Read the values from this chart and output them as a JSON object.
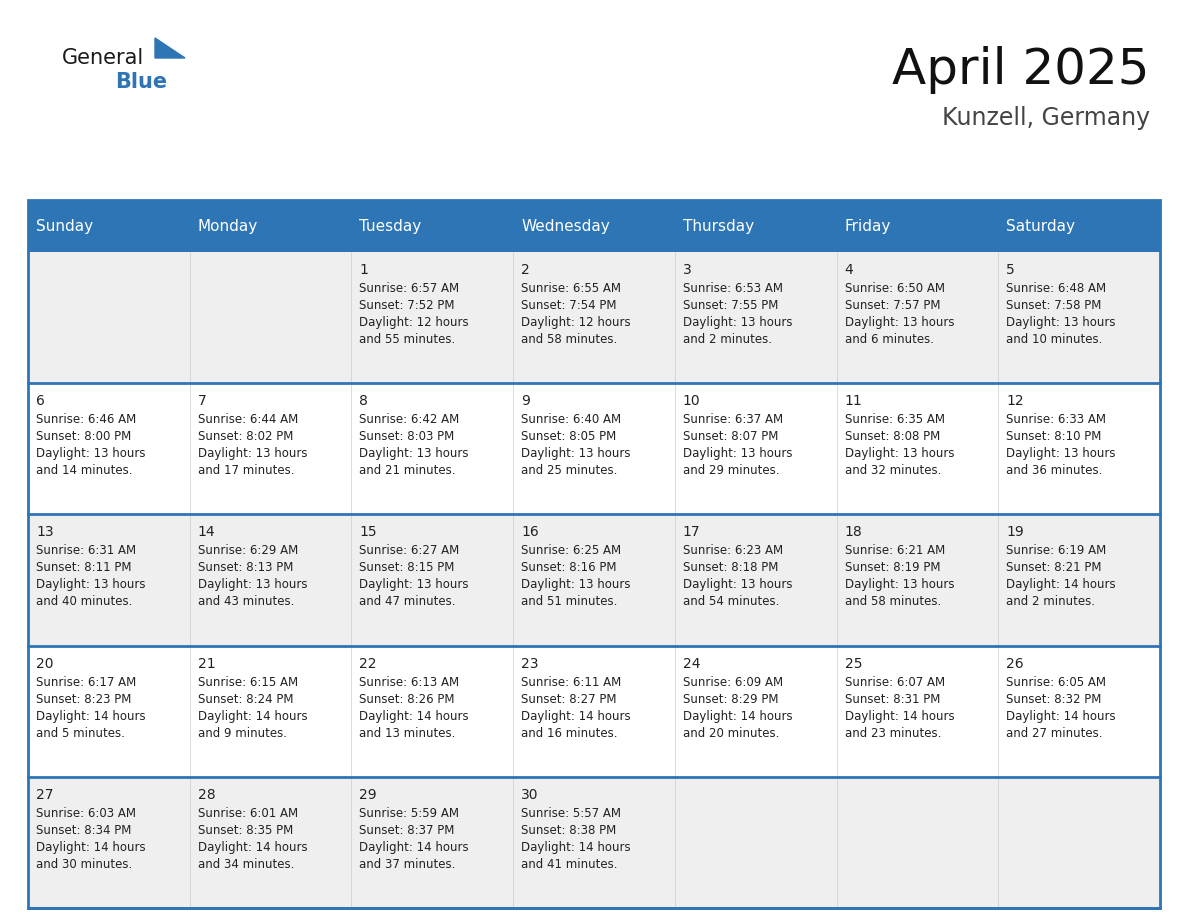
{
  "title": "April 2025",
  "subtitle": "Kunzell, Germany",
  "header_bg": "#2e75b6",
  "header_text": "#ffffff",
  "row_bg_gray": "#efefef",
  "row_bg_white": "#ffffff",
  "day_names": [
    "Sunday",
    "Monday",
    "Tuesday",
    "Wednesday",
    "Thursday",
    "Friday",
    "Saturday"
  ],
  "days": [
    {
      "day": "",
      "col": 0,
      "row": 0,
      "sunrise": "",
      "sunset": "",
      "daylight": ""
    },
    {
      "day": "",
      "col": 1,
      "row": 0,
      "sunrise": "",
      "sunset": "",
      "daylight": ""
    },
    {
      "day": "1",
      "col": 2,
      "row": 0,
      "sunrise": "Sunrise: 6:57 AM",
      "sunset": "Sunset: 7:52 PM",
      "daylight": "Daylight: 12 hours\nand 55 minutes."
    },
    {
      "day": "2",
      "col": 3,
      "row": 0,
      "sunrise": "Sunrise: 6:55 AM",
      "sunset": "Sunset: 7:54 PM",
      "daylight": "Daylight: 12 hours\nand 58 minutes."
    },
    {
      "day": "3",
      "col": 4,
      "row": 0,
      "sunrise": "Sunrise: 6:53 AM",
      "sunset": "Sunset: 7:55 PM",
      "daylight": "Daylight: 13 hours\nand 2 minutes."
    },
    {
      "day": "4",
      "col": 5,
      "row": 0,
      "sunrise": "Sunrise: 6:50 AM",
      "sunset": "Sunset: 7:57 PM",
      "daylight": "Daylight: 13 hours\nand 6 minutes."
    },
    {
      "day": "5",
      "col": 6,
      "row": 0,
      "sunrise": "Sunrise: 6:48 AM",
      "sunset": "Sunset: 7:58 PM",
      "daylight": "Daylight: 13 hours\nand 10 minutes."
    },
    {
      "day": "6",
      "col": 0,
      "row": 1,
      "sunrise": "Sunrise: 6:46 AM",
      "sunset": "Sunset: 8:00 PM",
      "daylight": "Daylight: 13 hours\nand 14 minutes."
    },
    {
      "day": "7",
      "col": 1,
      "row": 1,
      "sunrise": "Sunrise: 6:44 AM",
      "sunset": "Sunset: 8:02 PM",
      "daylight": "Daylight: 13 hours\nand 17 minutes."
    },
    {
      "day": "8",
      "col": 2,
      "row": 1,
      "sunrise": "Sunrise: 6:42 AM",
      "sunset": "Sunset: 8:03 PM",
      "daylight": "Daylight: 13 hours\nand 21 minutes."
    },
    {
      "day": "9",
      "col": 3,
      "row": 1,
      "sunrise": "Sunrise: 6:40 AM",
      "sunset": "Sunset: 8:05 PM",
      "daylight": "Daylight: 13 hours\nand 25 minutes."
    },
    {
      "day": "10",
      "col": 4,
      "row": 1,
      "sunrise": "Sunrise: 6:37 AM",
      "sunset": "Sunset: 8:07 PM",
      "daylight": "Daylight: 13 hours\nand 29 minutes."
    },
    {
      "day": "11",
      "col": 5,
      "row": 1,
      "sunrise": "Sunrise: 6:35 AM",
      "sunset": "Sunset: 8:08 PM",
      "daylight": "Daylight: 13 hours\nand 32 minutes."
    },
    {
      "day": "12",
      "col": 6,
      "row": 1,
      "sunrise": "Sunrise: 6:33 AM",
      "sunset": "Sunset: 8:10 PM",
      "daylight": "Daylight: 13 hours\nand 36 minutes."
    },
    {
      "day": "13",
      "col": 0,
      "row": 2,
      "sunrise": "Sunrise: 6:31 AM",
      "sunset": "Sunset: 8:11 PM",
      "daylight": "Daylight: 13 hours\nand 40 minutes."
    },
    {
      "day": "14",
      "col": 1,
      "row": 2,
      "sunrise": "Sunrise: 6:29 AM",
      "sunset": "Sunset: 8:13 PM",
      "daylight": "Daylight: 13 hours\nand 43 minutes."
    },
    {
      "day": "15",
      "col": 2,
      "row": 2,
      "sunrise": "Sunrise: 6:27 AM",
      "sunset": "Sunset: 8:15 PM",
      "daylight": "Daylight: 13 hours\nand 47 minutes."
    },
    {
      "day": "16",
      "col": 3,
      "row": 2,
      "sunrise": "Sunrise: 6:25 AM",
      "sunset": "Sunset: 8:16 PM",
      "daylight": "Daylight: 13 hours\nand 51 minutes."
    },
    {
      "day": "17",
      "col": 4,
      "row": 2,
      "sunrise": "Sunrise: 6:23 AM",
      "sunset": "Sunset: 8:18 PM",
      "daylight": "Daylight: 13 hours\nand 54 minutes."
    },
    {
      "day": "18",
      "col": 5,
      "row": 2,
      "sunrise": "Sunrise: 6:21 AM",
      "sunset": "Sunset: 8:19 PM",
      "daylight": "Daylight: 13 hours\nand 58 minutes."
    },
    {
      "day": "19",
      "col": 6,
      "row": 2,
      "sunrise": "Sunrise: 6:19 AM",
      "sunset": "Sunset: 8:21 PM",
      "daylight": "Daylight: 14 hours\nand 2 minutes."
    },
    {
      "day": "20",
      "col": 0,
      "row": 3,
      "sunrise": "Sunrise: 6:17 AM",
      "sunset": "Sunset: 8:23 PM",
      "daylight": "Daylight: 14 hours\nand 5 minutes."
    },
    {
      "day": "21",
      "col": 1,
      "row": 3,
      "sunrise": "Sunrise: 6:15 AM",
      "sunset": "Sunset: 8:24 PM",
      "daylight": "Daylight: 14 hours\nand 9 minutes."
    },
    {
      "day": "22",
      "col": 2,
      "row": 3,
      "sunrise": "Sunrise: 6:13 AM",
      "sunset": "Sunset: 8:26 PM",
      "daylight": "Daylight: 14 hours\nand 13 minutes."
    },
    {
      "day": "23",
      "col": 3,
      "row": 3,
      "sunrise": "Sunrise: 6:11 AM",
      "sunset": "Sunset: 8:27 PM",
      "daylight": "Daylight: 14 hours\nand 16 minutes."
    },
    {
      "day": "24",
      "col": 4,
      "row": 3,
      "sunrise": "Sunrise: 6:09 AM",
      "sunset": "Sunset: 8:29 PM",
      "daylight": "Daylight: 14 hours\nand 20 minutes."
    },
    {
      "day": "25",
      "col": 5,
      "row": 3,
      "sunrise": "Sunrise: 6:07 AM",
      "sunset": "Sunset: 8:31 PM",
      "daylight": "Daylight: 14 hours\nand 23 minutes."
    },
    {
      "day": "26",
      "col": 6,
      "row": 3,
      "sunrise": "Sunrise: 6:05 AM",
      "sunset": "Sunset: 8:32 PM",
      "daylight": "Daylight: 14 hours\nand 27 minutes."
    },
    {
      "day": "27",
      "col": 0,
      "row": 4,
      "sunrise": "Sunrise: 6:03 AM",
      "sunset": "Sunset: 8:34 PM",
      "daylight": "Daylight: 14 hours\nand 30 minutes."
    },
    {
      "day": "28",
      "col": 1,
      "row": 4,
      "sunrise": "Sunrise: 6:01 AM",
      "sunset": "Sunset: 8:35 PM",
      "daylight": "Daylight: 14 hours\nand 34 minutes."
    },
    {
      "day": "29",
      "col": 2,
      "row": 4,
      "sunrise": "Sunrise: 5:59 AM",
      "sunset": "Sunset: 8:37 PM",
      "daylight": "Daylight: 14 hours\nand 37 minutes."
    },
    {
      "day": "30",
      "col": 3,
      "row": 4,
      "sunrise": "Sunrise: 5:57 AM",
      "sunset": "Sunset: 8:38 PM",
      "daylight": "Daylight: 14 hours\nand 41 minutes."
    },
    {
      "day": "",
      "col": 4,
      "row": 4,
      "sunrise": "",
      "sunset": "",
      "daylight": ""
    },
    {
      "day": "",
      "col": 5,
      "row": 4,
      "sunrise": "",
      "sunset": "",
      "daylight": ""
    },
    {
      "day": "",
      "col": 6,
      "row": 4,
      "sunrise": "",
      "sunset": "",
      "daylight": ""
    }
  ],
  "num_rows": 5,
  "num_cols": 7,
  "cell_text_color": "#222222",
  "separator_color": "#2e75b6",
  "outer_border_color": "#2e75b6",
  "logo_black_color": "#1a1a1a",
  "logo_blue_color": "#2e75b6"
}
